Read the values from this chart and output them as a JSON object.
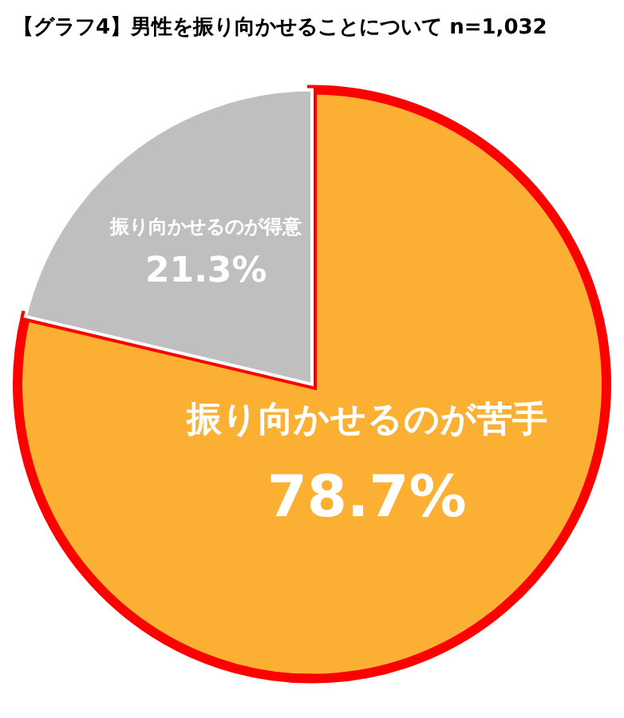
{
  "chart_data": {
    "type": "pie",
    "title": "【グラフ4】男性を振り向かせることについて n=1,032",
    "categories": [
      "振り向かせるのが苦手",
      "振り向かせるのが得意"
    ],
    "values": [
      78.7,
      21.3
    ],
    "colors": [
      "#fbb034",
      "#bfbfbf"
    ],
    "value_labels": [
      "78.7%",
      "21.3%"
    ],
    "legend": false
  }
}
